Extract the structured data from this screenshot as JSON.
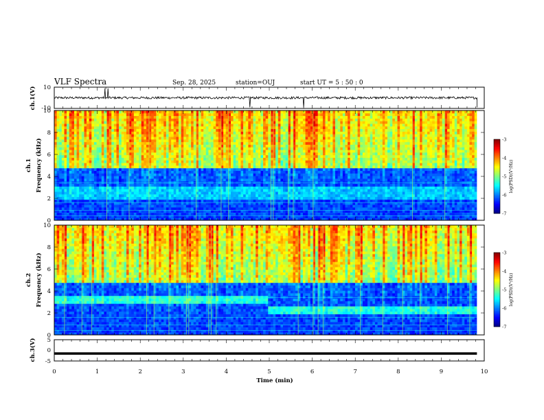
{
  "header": {
    "title": "VLF Spectra",
    "date": "Sep. 28, 2025",
    "station": "station=OUJ",
    "start": "start  UT =   5 : 50 : 0"
  },
  "chart_data": [
    {
      "type": "line",
      "panel": "ch1-waveform",
      "ylabel": "ch.1(V)",
      "ylim": [
        -10,
        10
      ],
      "yticks": [
        "10",
        "-10"
      ],
      "xlim": [
        0,
        10
      ],
      "description_values": {
        "baseline": 0,
        "spikes_min": [
          1.18,
          1.25,
          4.55,
          5.8
        ]
      }
    },
    {
      "type": "heatmap",
      "panel": "ch1-spectrogram",
      "ylabel": "ch.1\nFrequency (kHz)",
      "ylabel_lines": [
        "ch.1",
        "Frequency (kHz)"
      ],
      "ylim": [
        0,
        10
      ],
      "yticks": [
        "0",
        "2",
        "4",
        "6",
        "8",
        "10"
      ],
      "xlim": [
        0,
        9.83
      ],
      "colorbar": {
        "label": "log(PSD)(V²/Hz)",
        "range": [
          -7,
          -3
        ],
        "ticks": [
          "-3",
          "-4",
          "-5",
          "-6",
          "-7"
        ]
      },
      "features": {
        "low_band_top_kHz": 4.8,
        "noise_band_kHz": [
          2,
          3
        ]
      }
    },
    {
      "type": "heatmap",
      "panel": "ch2-spectrogram",
      "ylabel_lines": [
        "ch.2",
        "Frequency (kHz)"
      ],
      "ylim": [
        0,
        10
      ],
      "yticks": [
        "0",
        "2",
        "4",
        "6",
        "8",
        "10"
      ],
      "xlim": [
        0,
        9.83
      ],
      "colorbar": {
        "label": "log(PSD)(V²/Hz)",
        "range": [
          -7,
          -3
        ],
        "ticks": [
          "-3",
          "-4",
          "-5",
          "-6",
          "-7"
        ]
      },
      "features": {
        "band_kHz_before_5min": 3.2,
        "band_kHz_after_5min": 2.3,
        "shift_time_min": 5
      }
    },
    {
      "type": "line",
      "panel": "ch3-waveform",
      "ylabel": "ch.3(V)",
      "ylim": [
        -5,
        5
      ],
      "yticks": [
        "5",
        "0",
        "-5"
      ],
      "xlim": [
        0,
        10
      ],
      "level": -1.5
    }
  ],
  "xaxis": {
    "label": "Time (min)",
    "ticks": [
      "0",
      "1",
      "2",
      "3",
      "4",
      "5",
      "6",
      "7",
      "8",
      "9",
      "10"
    ]
  },
  "colors": {
    "axis": "#000000",
    "background": "#ffffff"
  }
}
